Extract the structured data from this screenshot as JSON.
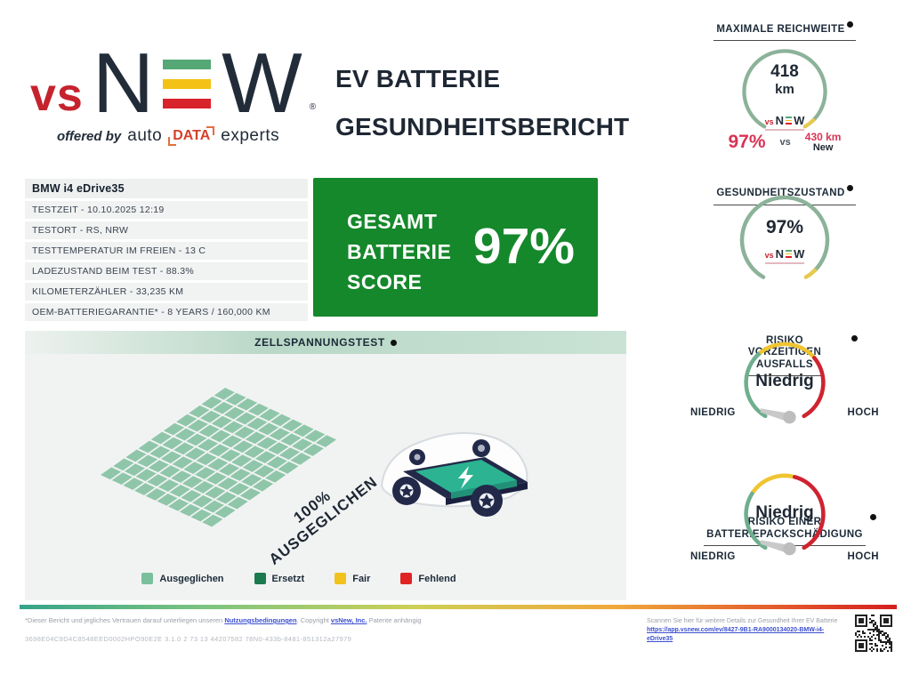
{
  "logo": {
    "vs": "vs",
    "n": "N",
    "w": "W",
    "registered": "®",
    "bar_colors": [
      "#55a876",
      "#f2c216",
      "#d8232b"
    ],
    "tagline_prefix": "offered by",
    "tagline_auto": "auto",
    "tagline_data": "DATA",
    "tagline_suffix": "experts"
  },
  "header": {
    "title_line1": "EV BATTERIE",
    "title_line2": "GESUNDHEITSBERICHT"
  },
  "vehicle": {
    "name": "BMW i4 eDrive35",
    "details": [
      "TESTZEIT - 10.10.2025 12:19",
      "TESTORT - RS, NRW",
      "TESTTEMPERATUR IM FREIEN - 13 C",
      "LADEZUSTAND BEIM TEST - 88.3%",
      "KILOMETERZÄHLER - 33,235 KM",
      "OEM-BATTERIEGARANTIE* - 8 YEARS / 160,000 KM"
    ]
  },
  "score": {
    "label_line1": "GESAMT",
    "label_line2": "BATTERIE",
    "label_line3": "SCORE",
    "value": "97%",
    "background": "#15882b"
  },
  "gauges": {
    "max_range": {
      "title": "MAXIMALE REICHWEITE",
      "value": "418",
      "unit": "km",
      "percent": "97%",
      "vs": "vs",
      "new_value": "430 km",
      "new_label": "New",
      "arc_color": "#8cb29a",
      "tip_color": "#e6c94f"
    },
    "health": {
      "title": "GESUNDHEITSZUSTAND",
      "value": "97%",
      "arc_color": "#8cb29a",
      "tip_color": "#e6c94f"
    },
    "failure_risk": {
      "title_line1": "RISIKO",
      "title_line2": "VORZEITIGEN",
      "title_line3": "AUSFALLS",
      "value": "Niedrig",
      "low": "NIEDRIG",
      "high": "HOCH",
      "arc_colors": [
        "#6fae8e",
        "#f0c431",
        "#cf2330"
      ]
    },
    "pack_damage_risk": {
      "title_line1": "RISIKO EINER",
      "title_line2": "BATTERIEPACKSCHÄDIGUNG",
      "value": "Niedrig",
      "low": "NIEDRIG",
      "high": "HOCH",
      "arc_colors": [
        "#6fae8e",
        "#f0c431",
        "#cf2330"
      ]
    }
  },
  "mini_logo": {
    "vs": "vs",
    "n": "N",
    "w": "W"
  },
  "cell_test": {
    "title": "ZELLSPANNUNGSTEST",
    "annotation_line1": "100%",
    "annotation_line2": "AUSGEGLICHEN",
    "grid": {
      "rows": 10,
      "cols": 10,
      "cell_color": "#8fc6aa"
    },
    "legend": [
      {
        "label": "Ausgeglichen",
        "color": "#7bbf9c"
      },
      {
        "label": "Ersetzt",
        "color": "#1b7a4e"
      },
      {
        "label": "Fair",
        "color": "#f2c21c"
      },
      {
        "label": "Fehlend",
        "color": "#e02424"
      }
    ]
  },
  "footer": {
    "disclaimer_prefix": "*Dieser Bericht und jegliches Vertrauen darauf unterliegen unseren ",
    "terms_link": "Nutzungsbedingungen",
    "disclaimer_mid": ". Copyright ",
    "company_link": "vsNew, Inc.",
    "disclaimer_suffix": " Patente anhängig",
    "report_code": "3698E04C9D4C8548EED0002HPO90E2E 3.1.0 2 73 13 44207582 78N0-433b-8481-851312a27979",
    "qr_caption": "Scannen Sie hier für weitere Details zur Gesundheit Ihrer EV Batterie",
    "qr_link": "https://app.vsnew.com/ev/8427-9B1-RA9000134020-BMW-i4-eDrive35"
  },
  "colors": {
    "navy_text": "#1e2733",
    "score_green": "#15882b",
    "crimson": "#d93355",
    "footer_link_blue": "#3b4fd0",
    "section_header_mint": "#b9d8c7"
  }
}
